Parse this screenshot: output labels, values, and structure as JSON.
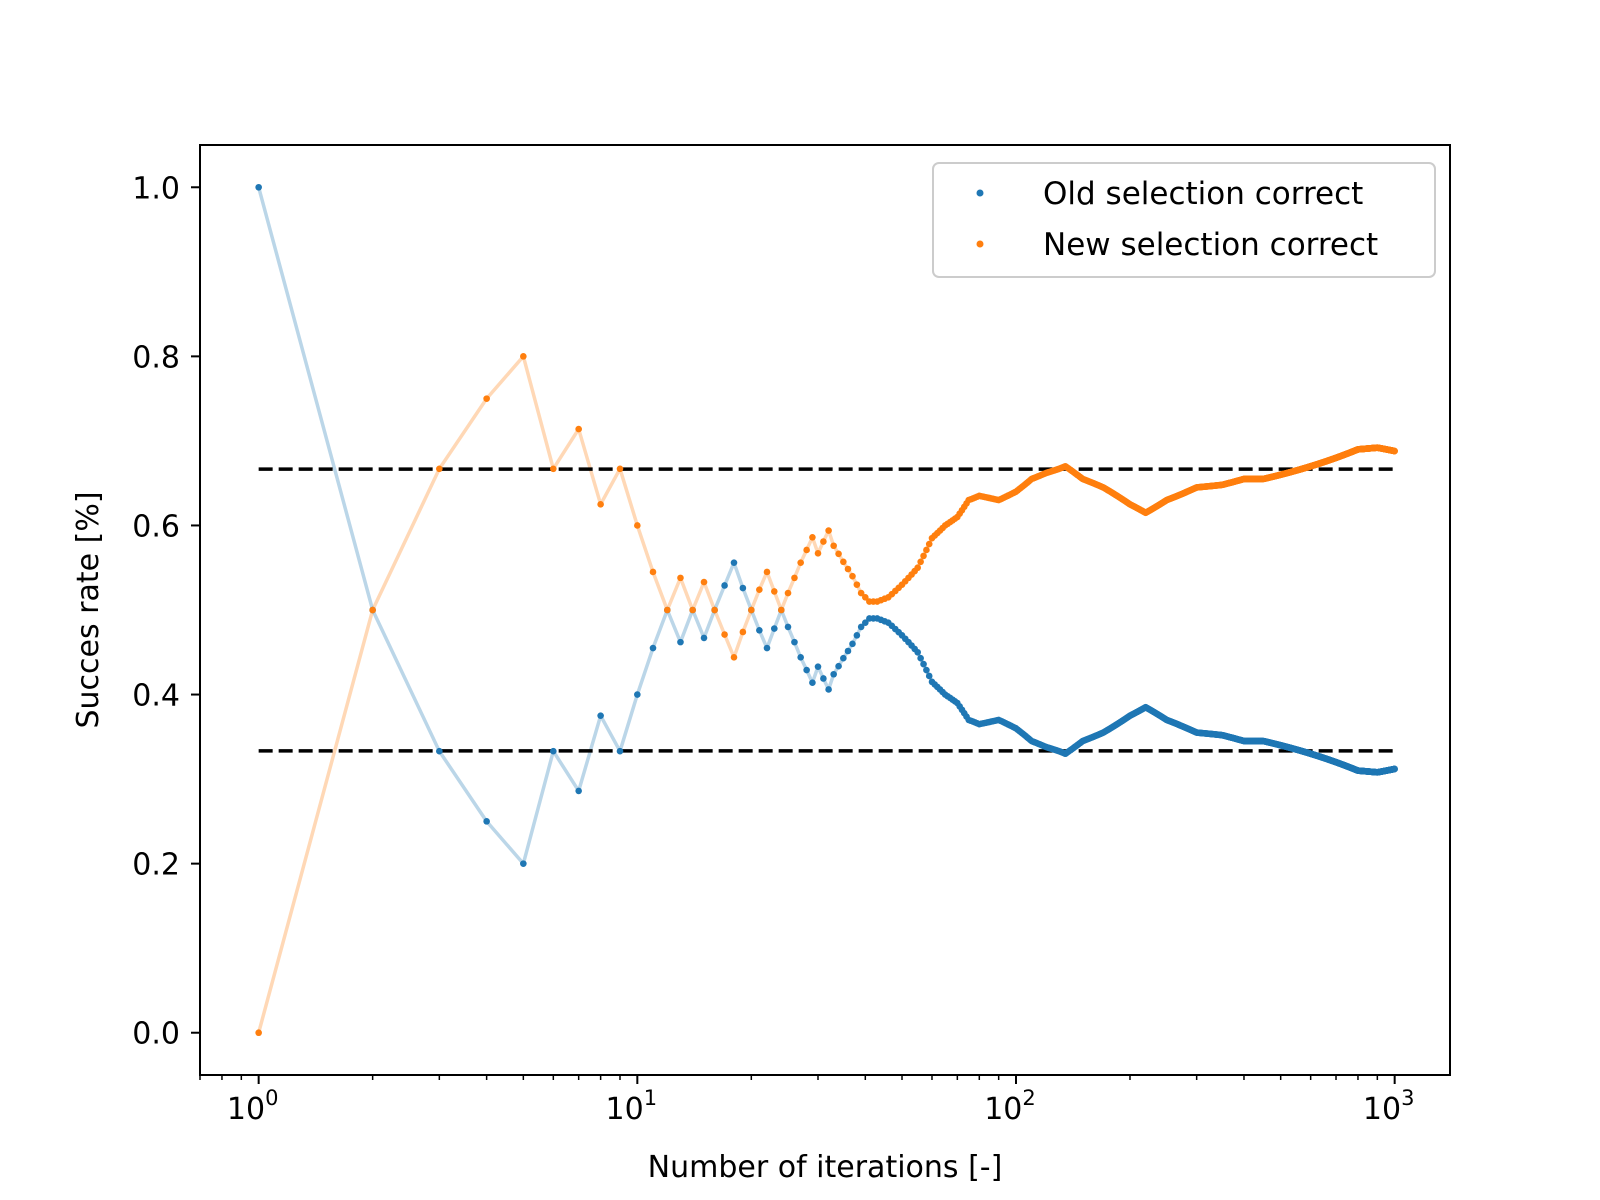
{
  "chart_data": {
    "type": "scatter",
    "title": "",
    "xlabel": "Number of iterations [-]",
    "ylabel": "Succes rate [%]",
    "xscale": "log",
    "xlim": [
      0.7,
      1400
    ],
    "ylim": [
      -0.05,
      1.05
    ],
    "x_ticks": [
      {
        "value": 1,
        "base": "10",
        "exp": "0"
      },
      {
        "value": 10,
        "base": "10",
        "exp": "1"
      },
      {
        "value": 100,
        "base": "10",
        "exp": "2"
      },
      {
        "value": 1000,
        "base": "10",
        "exp": "3"
      }
    ],
    "y_ticks": [
      "0.0",
      "0.2",
      "0.4",
      "0.6",
      "0.8",
      "1.0"
    ],
    "grid": false,
    "legend_position": "top-right",
    "reference_lines": [
      {
        "y": 0.6667,
        "style": "dashed",
        "color": "#000000"
      },
      {
        "y": 0.3333,
        "style": "dashed",
        "color": "#000000"
      }
    ],
    "series": [
      {
        "name": "Old selection correct",
        "color": "#1f77b4",
        "points": [
          [
            1,
            1.0
          ],
          [
            2,
            0.5
          ],
          [
            3,
            0.333
          ],
          [
            4,
            0.25
          ],
          [
            5,
            0.2
          ],
          [
            6,
            0.333
          ],
          [
            7,
            0.286
          ],
          [
            8,
            0.375
          ],
          [
            9,
            0.333
          ],
          [
            10,
            0.4
          ],
          [
            11,
            0.455
          ],
          [
            12,
            0.5
          ],
          [
            13,
            0.462
          ],
          [
            14,
            0.5
          ],
          [
            15,
            0.467
          ],
          [
            16,
            0.5
          ],
          [
            17,
            0.529
          ],
          [
            18,
            0.556
          ],
          [
            19,
            0.526
          ],
          [
            20,
            0.5
          ],
          [
            21,
            0.476
          ],
          [
            22,
            0.455
          ],
          [
            23,
            0.478
          ],
          [
            24,
            0.5
          ],
          [
            25,
            0.48
          ],
          [
            26,
            0.462
          ],
          [
            27,
            0.444
          ],
          [
            28,
            0.429
          ],
          [
            29,
            0.414
          ],
          [
            30,
            0.433
          ],
          [
            31,
            0.419
          ],
          [
            32,
            0.406
          ],
          [
            33,
            0.424
          ],
          [
            35,
            0.443
          ],
          [
            37,
            0.46
          ],
          [
            39,
            0.48
          ],
          [
            41,
            0.49
          ],
          [
            43,
            0.49
          ],
          [
            46,
            0.485
          ],
          [
            50,
            0.47
          ],
          [
            55,
            0.45
          ],
          [
            60,
            0.415
          ],
          [
            65,
            0.4
          ],
          [
            70,
            0.39
          ],
          [
            75,
            0.37
          ],
          [
            80,
            0.365
          ],
          [
            90,
            0.37
          ],
          [
            100,
            0.36
          ],
          [
            110,
            0.345
          ],
          [
            120,
            0.338
          ],
          [
            130,
            0.333
          ],
          [
            135,
            0.33
          ],
          [
            150,
            0.345
          ],
          [
            170,
            0.355
          ],
          [
            200,
            0.375
          ],
          [
            220,
            0.385
          ],
          [
            250,
            0.37
          ],
          [
            300,
            0.355
          ],
          [
            350,
            0.352
          ],
          [
            400,
            0.345
          ],
          [
            450,
            0.345
          ],
          [
            500,
            0.34
          ],
          [
            600,
            0.33
          ],
          [
            700,
            0.32
          ],
          [
            800,
            0.31
          ],
          [
            900,
            0.308
          ],
          [
            1000,
            0.312
          ]
        ]
      },
      {
        "name": "New selection correct",
        "color": "#ff7f0e",
        "points": [
          [
            1,
            0.0
          ],
          [
            2,
            0.5
          ],
          [
            3,
            0.667
          ],
          [
            4,
            0.75
          ],
          [
            5,
            0.8
          ],
          [
            6,
            0.667
          ],
          [
            7,
            0.714
          ],
          [
            8,
            0.625
          ],
          [
            9,
            0.667
          ],
          [
            10,
            0.6
          ],
          [
            11,
            0.545
          ],
          [
            12,
            0.5
          ],
          [
            13,
            0.538
          ],
          [
            14,
            0.5
          ],
          [
            15,
            0.533
          ],
          [
            16,
            0.5
          ],
          [
            17,
            0.471
          ],
          [
            18,
            0.444
          ],
          [
            19,
            0.474
          ],
          [
            20,
            0.5
          ],
          [
            21,
            0.524
          ],
          [
            22,
            0.545
          ],
          [
            23,
            0.522
          ],
          [
            24,
            0.5
          ],
          [
            25,
            0.52
          ],
          [
            26,
            0.538
          ],
          [
            27,
            0.556
          ],
          [
            28,
            0.571
          ],
          [
            29,
            0.586
          ],
          [
            30,
            0.567
          ],
          [
            31,
            0.581
          ],
          [
            32,
            0.594
          ],
          [
            33,
            0.576
          ],
          [
            35,
            0.557
          ],
          [
            37,
            0.54
          ],
          [
            39,
            0.52
          ],
          [
            41,
            0.51
          ],
          [
            43,
            0.51
          ],
          [
            46,
            0.515
          ],
          [
            50,
            0.53
          ],
          [
            55,
            0.55
          ],
          [
            60,
            0.585
          ],
          [
            65,
            0.6
          ],
          [
            70,
            0.61
          ],
          [
            75,
            0.63
          ],
          [
            80,
            0.635
          ],
          [
            90,
            0.63
          ],
          [
            100,
            0.64
          ],
          [
            110,
            0.655
          ],
          [
            120,
            0.662
          ],
          [
            130,
            0.667
          ],
          [
            135,
            0.67
          ],
          [
            150,
            0.655
          ],
          [
            170,
            0.645
          ],
          [
            200,
            0.625
          ],
          [
            220,
            0.615
          ],
          [
            250,
            0.63
          ],
          [
            300,
            0.645
          ],
          [
            350,
            0.648
          ],
          [
            400,
            0.655
          ],
          [
            450,
            0.655
          ],
          [
            500,
            0.66
          ],
          [
            600,
            0.67
          ],
          [
            700,
            0.68
          ],
          [
            800,
            0.69
          ],
          [
            900,
            0.692
          ],
          [
            1000,
            0.688
          ]
        ]
      }
    ]
  }
}
